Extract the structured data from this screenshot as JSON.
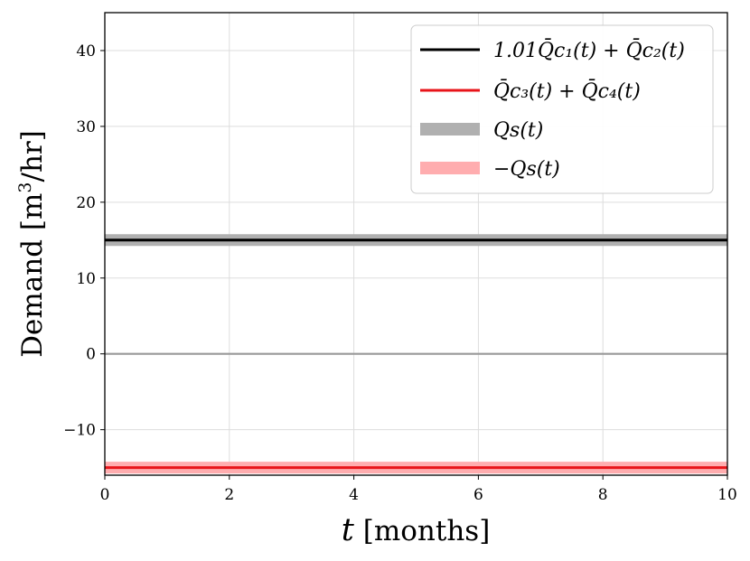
{
  "chart_data": {
    "type": "line",
    "xlabel_var": "t",
    "xlabel_unit": "[months]",
    "ylabel_main": "Demand [m",
    "ylabel_sup": "3",
    "ylabel_tail": "/hr]",
    "xlim": [
      0,
      10
    ],
    "ylim": [
      -16,
      45
    ],
    "x_ticks": [
      0,
      2,
      4,
      6,
      8,
      10
    ],
    "y_ticks": [
      -10,
      0,
      10,
      20,
      30,
      40
    ],
    "x_tick_labels": [
      "0",
      "2",
      "4",
      "6",
      "8",
      "10"
    ],
    "y_tick_labels": [
      "−10",
      "0",
      "10",
      "20",
      "30",
      "40"
    ],
    "grid": true,
    "legend_position": "top-right",
    "series": [
      {
        "name": "1.01Q̄c₁(t) + Q̄c₂(t)",
        "x": [
          0,
          10
        ],
        "y": [
          15,
          15
        ],
        "color": "#000000",
        "style": "thin"
      },
      {
        "name": "Q̄c₃(t) + Q̄c₄(t)",
        "x": [
          0,
          10
        ],
        "y": [
          -15,
          -15
        ],
        "color": "#e8141a",
        "style": "thin"
      },
      {
        "name": "Qs(t)",
        "x": [
          0,
          10
        ],
        "y": [
          15,
          15
        ],
        "color": "#b0b0b0",
        "style": "band"
      },
      {
        "name": "−Qs(t)",
        "x": [
          0,
          10
        ],
        "y": [
          -15,
          -15
        ],
        "color": "#ffadaf",
        "style": "band"
      }
    ],
    "zero_line": {
      "y": 0,
      "color": "#999999"
    }
  }
}
